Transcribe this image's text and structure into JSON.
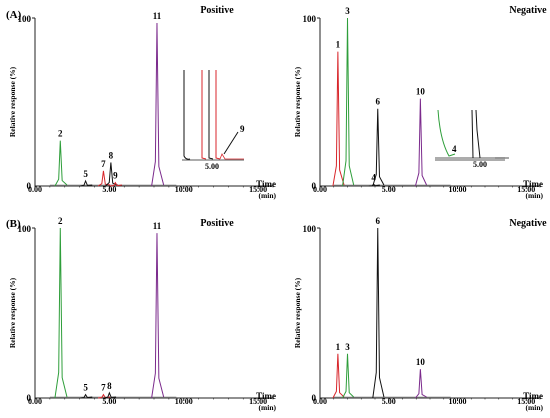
{
  "figure": {
    "colors": {
      "green": "#2e9e3a",
      "red": "#d8262b",
      "black": "#111111",
      "purple": "#7b2a8c"
    },
    "y_axis_label": "Relative response (%)",
    "time_label": "Time",
    "time_unit": "(min)"
  },
  "chart_data": [
    {
      "id": "A-positive",
      "type": "line",
      "panel_label": "(A)",
      "title": "Positive",
      "xlim": [
        0,
        16
      ],
      "ylim": [
        0,
        100
      ],
      "xticks": [
        "0.00",
        "5.00",
        "10.00",
        "15.00"
      ],
      "ytick_top": "100",
      "ytick_bottom": "0",
      "peaks": [
        {
          "label": "2",
          "x": 1.7,
          "y": 27,
          "color": "green"
        },
        {
          "label": "5",
          "x": 3.4,
          "y": 3,
          "color": "black"
        },
        {
          "label": "7",
          "x": 4.6,
          "y": 9,
          "color": "red"
        },
        {
          "label": "8",
          "x": 5.1,
          "y": 14,
          "color": "black"
        },
        {
          "label": "9",
          "x": 5.4,
          "y": 2,
          "color": "red"
        },
        {
          "label": "11",
          "x": 8.2,
          "y": 97,
          "color": "purple"
        }
      ],
      "inset": {
        "tick": "5.00",
        "labels": [
          "9"
        ]
      }
    },
    {
      "id": "A-negative",
      "type": "line",
      "title": "Negative",
      "xlim": [
        0,
        16
      ],
      "ylim": [
        0,
        100
      ],
      "xticks": [
        "0.00",
        "5.00",
        "10.00",
        "15.00"
      ],
      "ytick_top": "100",
      "ytick_bottom": "0",
      "peaks": [
        {
          "label": "1",
          "x": 1.3,
          "y": 80,
          "color": "red"
        },
        {
          "label": "3",
          "x": 2.0,
          "y": 100,
          "color": "green"
        },
        {
          "label": "4",
          "x": 3.9,
          "y": 1,
          "color": "black"
        },
        {
          "label": "6",
          "x": 4.2,
          "y": 46,
          "color": "black"
        },
        {
          "label": "10",
          "x": 7.3,
          "y": 52,
          "color": "purple"
        }
      ],
      "inset": {
        "tick": "5.00",
        "labels": [
          "4"
        ]
      }
    },
    {
      "id": "B-positive",
      "type": "line",
      "panel_label": "(B)",
      "title": "Positive",
      "xlim": [
        0,
        16
      ],
      "ylim": [
        0,
        100
      ],
      "xticks": [
        "0.00",
        "5.00",
        "10.00",
        "15.00"
      ],
      "ytick_top": "100",
      "ytick_bottom": "0",
      "peaks": [
        {
          "label": "2",
          "x": 1.7,
          "y": 100,
          "color": "green"
        },
        {
          "label": "5",
          "x": 3.4,
          "y": 2,
          "color": "black"
        },
        {
          "label": "7",
          "x": 4.6,
          "y": 2,
          "color": "red"
        },
        {
          "label": "8",
          "x": 5.0,
          "y": 3,
          "color": "black"
        },
        {
          "label": "11",
          "x": 8.2,
          "y": 97,
          "color": "purple"
        }
      ]
    },
    {
      "id": "B-negative",
      "type": "line",
      "title": "Negative",
      "xlim": [
        0,
        16
      ],
      "ylim": [
        0,
        100
      ],
      "xticks": [
        "0.00",
        "5.00",
        "10.00",
        "15.00"
      ],
      "ytick_top": "100",
      "ytick_bottom": "0",
      "peaks": [
        {
          "label": "1",
          "x": 1.3,
          "y": 26,
          "color": "red"
        },
        {
          "label": "3",
          "x": 2.0,
          "y": 26,
          "color": "green"
        },
        {
          "label": "6",
          "x": 4.2,
          "y": 100,
          "color": "black"
        },
        {
          "label": "10",
          "x": 7.3,
          "y": 17,
          "color": "purple"
        }
      ]
    }
  ]
}
